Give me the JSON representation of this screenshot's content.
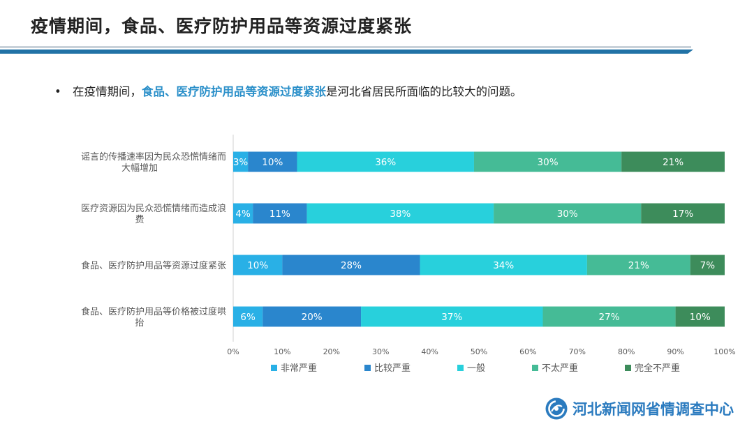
{
  "slide": {
    "title": "疫情期间，食品、医疗防护用品等资源过度紧张",
    "bullet": {
      "marker": "•",
      "prefix": "在疫情期间，",
      "highlight": "食品、医疗防护用品等资源过度紧张",
      "suffix": "是河北省居民所面临的比较大的问题。"
    },
    "logo_text": "河北新闻网省情调查中心"
  },
  "colors": {
    "accent_blue": "#2172a6",
    "highlight_text": "#2a8fc9",
    "logo": "#2b7bbf"
  },
  "chart_data": {
    "type": "bar",
    "orientation": "horizontal",
    "stacked": "percent",
    "categories": [
      "谣言的传播速率因为民众恐慌情绪而大幅增加",
      "医疗资源因为民众恐慌情绪而造成浪费",
      "食品、医疗防护用品等资源过度紧张",
      "食品、医疗防护用品等价格被过度哄抬"
    ],
    "series": [
      {
        "name": "非常严重",
        "color": "#29b0e6",
        "values": [
          3,
          4,
          10,
          6
        ]
      },
      {
        "name": "比较严重",
        "color": "#2a86cd",
        "values": [
          10,
          11,
          28,
          20
        ]
      },
      {
        "name": "一般",
        "color": "#28d0dc",
        "values": [
          36,
          38,
          34,
          37
        ]
      },
      {
        "name": "不太严重",
        "color": "#45bb96",
        "values": [
          30,
          30,
          21,
          27
        ]
      },
      {
        "name": "完全不严重",
        "color": "#3d8c5b",
        "values": [
          21,
          17,
          7,
          10
        ]
      }
    ],
    "xticks": [
      "0%",
      "10%",
      "20%",
      "30%",
      "40%",
      "50%",
      "60%",
      "70%",
      "80%",
      "90%",
      "100%"
    ],
    "xlim": [
      0,
      100
    ],
    "legend_position": "bottom",
    "grid": false
  }
}
